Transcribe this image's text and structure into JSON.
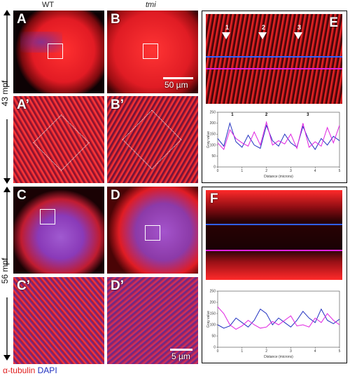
{
  "column_headers": {
    "wt": "WT",
    "tmi": "tmi"
  },
  "timepoints": {
    "top": "43 mpf",
    "bottom": "56 mpf"
  },
  "panels": {
    "A": "A",
    "B": "B",
    "A_prime": "A’",
    "B_prime": "B’",
    "C": "C",
    "D": "D",
    "C_prime": "C’",
    "D_prime": "D’",
    "E": "E",
    "F": "F"
  },
  "scalebars": {
    "large": "50 µm",
    "small": "5 µm"
  },
  "arrowheads": [
    "1",
    "2",
    "3"
  ],
  "legend": {
    "tubulin": "α-tubulin",
    "dapi": "DAPI",
    "tubulin_color": "#e02020",
    "dapi_color": "#2030c0"
  },
  "line_colors": {
    "line_1": "#3060ff",
    "line_2": "#e020e0"
  },
  "chart_data": [
    {
      "type": "line",
      "xlabel": "Distance (microns)",
      "ylabel": "Gray value",
      "xlim": [
        0,
        5
      ],
      "ylim": [
        0,
        250
      ],
      "annotations": [
        "1",
        "2",
        "3"
      ],
      "series": [
        {
          "color": "#2030c0",
          "x": [
            0,
            0.25,
            0.5,
            0.75,
            1,
            1.25,
            1.5,
            1.75,
            2,
            2.25,
            2.5,
            2.75,
            3,
            3.25,
            3.5,
            3.75,
            4,
            4.25,
            4.5,
            4.75,
            5
          ],
          "y": [
            130,
            95,
            200,
            115,
            90,
            145,
            100,
            85,
            190,
            120,
            95,
            150,
            110,
            90,
            185,
            120,
            80,
            130,
            100,
            140,
            120
          ]
        },
        {
          "color": "#e020e0",
          "x": [
            0,
            0.25,
            0.5,
            0.75,
            1,
            1.25,
            1.5,
            1.75,
            2,
            2.25,
            2.5,
            2.75,
            3,
            3.25,
            3.5,
            3.75,
            4,
            4.25,
            4.5,
            4.75,
            5
          ],
          "y": [
            110,
            80,
            170,
            130,
            110,
            95,
            160,
            100,
            205,
            100,
            120,
            105,
            150,
            85,
            200,
            90,
            115,
            95,
            180,
            110,
            190
          ]
        }
      ]
    },
    {
      "type": "line",
      "xlabel": "Distance (microns)",
      "ylabel": "Gray value",
      "xlim": [
        0,
        5
      ],
      "ylim": [
        0,
        250
      ],
      "series": [
        {
          "color": "#2030c0",
          "x": [
            0,
            0.25,
            0.5,
            0.75,
            1,
            1.25,
            1.5,
            1.75,
            2,
            2.25,
            2.5,
            2.75,
            3,
            3.25,
            3.5,
            3.75,
            4,
            4.25,
            4.5,
            4.75,
            5
          ],
          "y": [
            100,
            85,
            95,
            130,
            110,
            90,
            120,
            170,
            150,
            100,
            130,
            110,
            90,
            120,
            160,
            130,
            110,
            170,
            120,
            105,
            125
          ]
        },
        {
          "color": "#e020e0",
          "x": [
            0,
            0.25,
            0.5,
            0.75,
            1,
            1.25,
            1.5,
            1.75,
            2,
            2.25,
            2.5,
            2.75,
            3,
            3.25,
            3.5,
            3.75,
            4,
            4.25,
            4.5,
            4.75,
            5
          ],
          "y": [
            180,
            150,
            100,
            80,
            95,
            120,
            100,
            85,
            90,
            115,
            100,
            120,
            140,
            95,
            100,
            90,
            130,
            110,
            150,
            120,
            100
          ]
        }
      ]
    }
  ]
}
